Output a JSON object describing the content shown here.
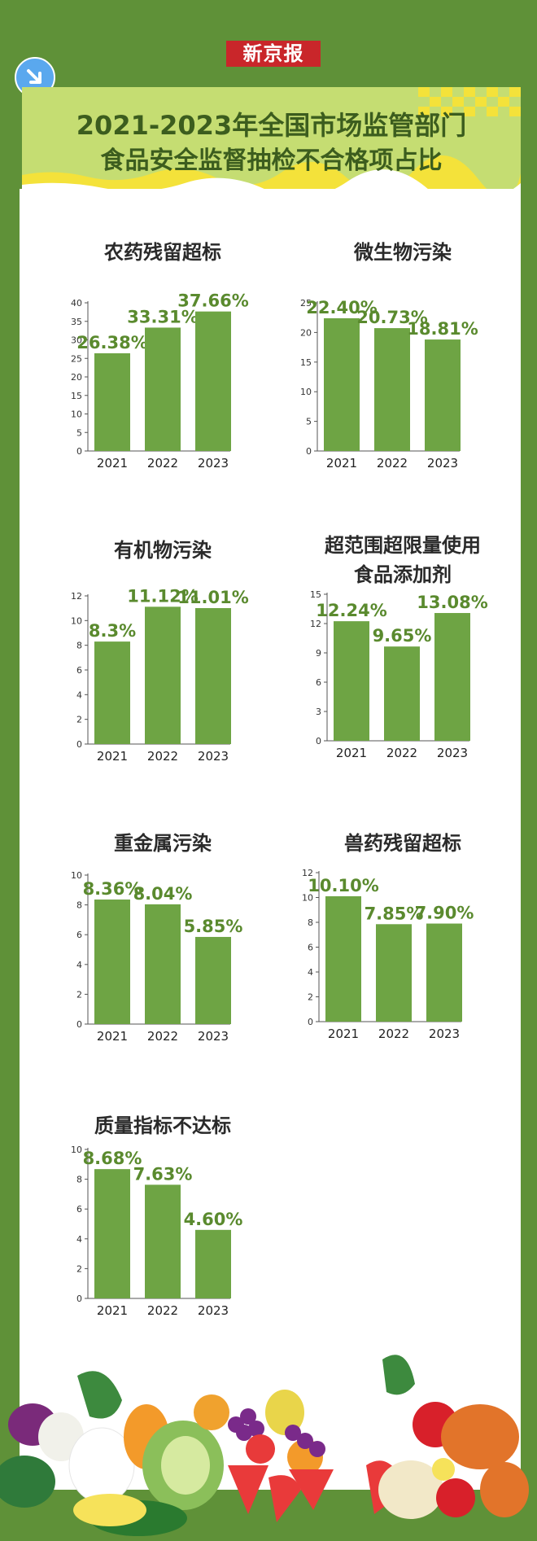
{
  "brand": {
    "logo_text": "新京报"
  },
  "header": {
    "title_line1": "2021-2023年全国市场监管部门",
    "title_line2": "食品安全监督抽检不合格项占比"
  },
  "colors": {
    "background": "#5f9138",
    "bar": "#6ea444",
    "title": "#3c5d1e",
    "banner": "#c5dd72",
    "accent": "#f4e23a",
    "logo": "#c9262a"
  },
  "icons": {
    "corner": "arrow-down-right-icon",
    "footer": "fruits-vegetables-illustration"
  },
  "chart_data": [
    {
      "type": "bar",
      "title_lines": [
        "农药残留超标"
      ],
      "categories": [
        "2021",
        "2022",
        "2023"
      ],
      "values": [
        26.38,
        33.31,
        37.66
      ],
      "labels": [
        "26.38%",
        "33.31%",
        "37.66%"
      ],
      "yticks": [
        0,
        5,
        10,
        15,
        20,
        25,
        30,
        35,
        40
      ],
      "ylim": [
        0,
        40
      ]
    },
    {
      "type": "bar",
      "title_lines": [
        "微生物污染"
      ],
      "categories": [
        "2021",
        "2022",
        "2023"
      ],
      "values": [
        22.4,
        20.73,
        18.81
      ],
      "labels": [
        "22.40%",
        "20.73%",
        "18.81%"
      ],
      "yticks": [
        0,
        5,
        10,
        15,
        20,
        25
      ],
      "ylim": [
        0,
        25
      ]
    },
    {
      "type": "bar",
      "title_lines": [
        "有机物污染"
      ],
      "categories": [
        "2021",
        "2022",
        "2023"
      ],
      "values": [
        8.3,
        11.12,
        11.01
      ],
      "labels": [
        "8.3%",
        "11.12%",
        "11.01%"
      ],
      "yticks": [
        0,
        2,
        4,
        6,
        8,
        10,
        12
      ],
      "ylim": [
        0,
        12
      ]
    },
    {
      "type": "bar",
      "title_lines": [
        "超范围超限量使用",
        "食品添加剂"
      ],
      "categories": [
        "2021",
        "2022",
        "2023"
      ],
      "values": [
        12.24,
        9.65,
        13.08
      ],
      "labels": [
        "12.24%",
        "9.65%",
        "13.08%"
      ],
      "yticks": [
        0,
        3,
        6,
        9,
        12,
        15
      ],
      "ylim": [
        0,
        15
      ]
    },
    {
      "type": "bar",
      "title_lines": [
        "重金属污染"
      ],
      "categories": [
        "2021",
        "2022",
        "2023"
      ],
      "values": [
        8.36,
        8.04,
        5.85
      ],
      "labels": [
        "8.36%",
        "8.04%",
        "5.85%"
      ],
      "yticks": [
        0,
        2,
        4,
        6,
        8,
        10
      ],
      "ylim": [
        0,
        10
      ]
    },
    {
      "type": "bar",
      "title_lines": [
        "兽药残留超标"
      ],
      "categories": [
        "2021",
        "2022",
        "2023"
      ],
      "values": [
        10.1,
        7.85,
        7.9
      ],
      "labels": [
        "10.10%",
        "7.85%",
        "7.90%"
      ],
      "yticks": [
        0,
        2,
        4,
        6,
        8,
        10,
        12
      ],
      "ylim": [
        0,
        12
      ]
    },
    {
      "type": "bar",
      "title_lines": [
        "质量指标不达标"
      ],
      "categories": [
        "2021",
        "2022",
        "2023"
      ],
      "values": [
        8.68,
        7.63,
        4.6
      ],
      "labels": [
        "8.68%",
        "7.63%",
        "4.60%"
      ],
      "yticks": [
        0,
        2,
        4,
        6,
        8,
        10
      ],
      "ylim": [
        0,
        10
      ]
    }
  ]
}
